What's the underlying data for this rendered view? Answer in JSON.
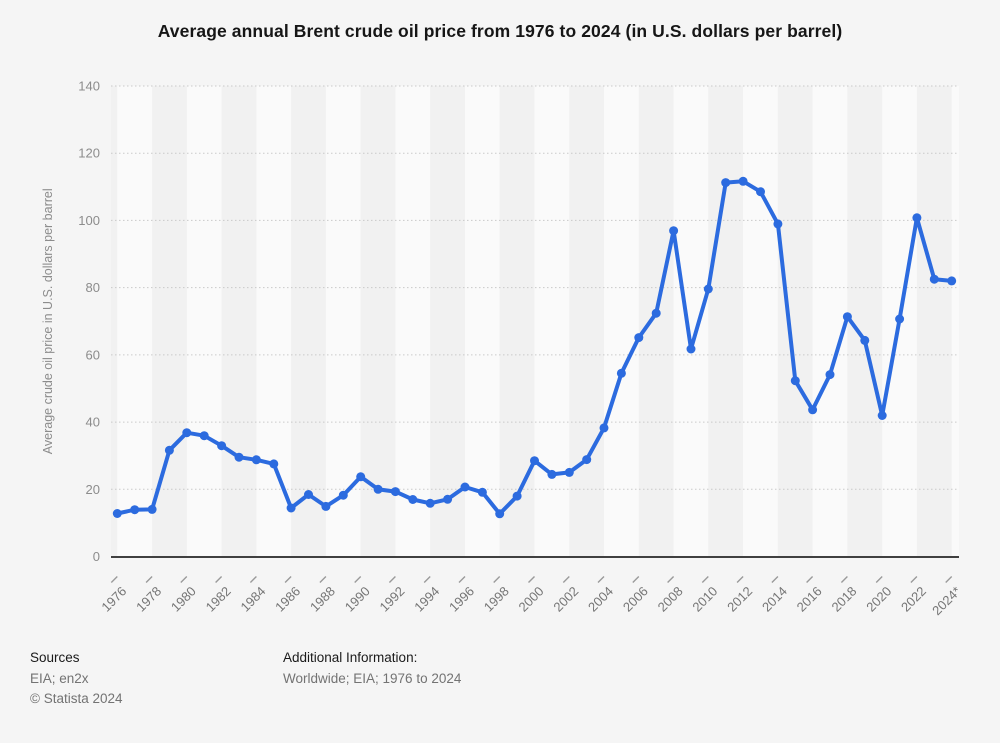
{
  "chart_data": {
    "type": "line",
    "title": "Average annual Brent crude oil price from 1976 to 2024 (in U.S. dollars per barrel)",
    "ylabel": "Average crude oil price in U.S. dollars per barrel",
    "xlabel": "",
    "ylim": [
      0,
      140
    ],
    "ytick_interval": 20,
    "grid": "dotted-horizontal",
    "legend": "none",
    "series_name": "Brent crude oil price",
    "years": [
      1976,
      1977,
      1978,
      1979,
      1980,
      1981,
      1982,
      1983,
      1984,
      1985,
      1986,
      1987,
      1988,
      1989,
      1990,
      1991,
      1992,
      1993,
      1994,
      1995,
      1996,
      1997,
      1998,
      1999,
      2000,
      2001,
      2002,
      2003,
      2004,
      2005,
      2006,
      2007,
      2008,
      2009,
      2010,
      2011,
      2012,
      2013,
      2014,
      2015,
      2016,
      2017,
      2018,
      2019,
      2020,
      2021,
      2022,
      2023,
      2024
    ],
    "values": [
      12.8,
      13.92,
      14.02,
      31.61,
      36.83,
      35.93,
      32.97,
      29.55,
      28.78,
      27.56,
      14.43,
      18.44,
      14.92,
      18.23,
      23.73,
      20.0,
      19.32,
      16.97,
      15.82,
      17.02,
      20.67,
      19.09,
      12.72,
      17.97,
      28.5,
      24.44,
      25.02,
      28.83,
      38.27,
      54.52,
      65.14,
      72.39,
      96.94,
      61.74,
      79.61,
      111.26,
      111.63,
      108.56,
      98.97,
      52.32,
      43.64,
      54.13,
      71.34,
      64.3,
      41.96,
      70.68,
      100.78,
      82.5,
      82.0
    ],
    "x_tick_labels": [
      "1976",
      "1978",
      "1980",
      "1982",
      "1984",
      "1986",
      "1988",
      "1990",
      "1992",
      "1994",
      "1996",
      "1998",
      "2000",
      "2002",
      "2004",
      "2006",
      "2008",
      "2010",
      "2012",
      "2014",
      "2016",
      "2018",
      "2020",
      "2022",
      "2024*"
    ],
    "y_tick_labels": [
      "0",
      "20",
      "40",
      "60",
      "80",
      "100",
      "120",
      "140"
    ],
    "line_color": "#2c6bdf",
    "band_light": "#fafafa",
    "band_dark": "#f1f1f1",
    "gridline_color": "#c9c9c9",
    "axis_line_color": "#404040",
    "tick_label_color": "#757575",
    "y_label_color": "#8c8c8c"
  },
  "footer": {
    "sources_label": "Sources",
    "sources_text": "EIA; en2x",
    "copyright": "© Statista 2024",
    "additional_info_label": "Additional Information:",
    "additional_info_text": "Worldwide; EIA; 1976 to 2024"
  }
}
